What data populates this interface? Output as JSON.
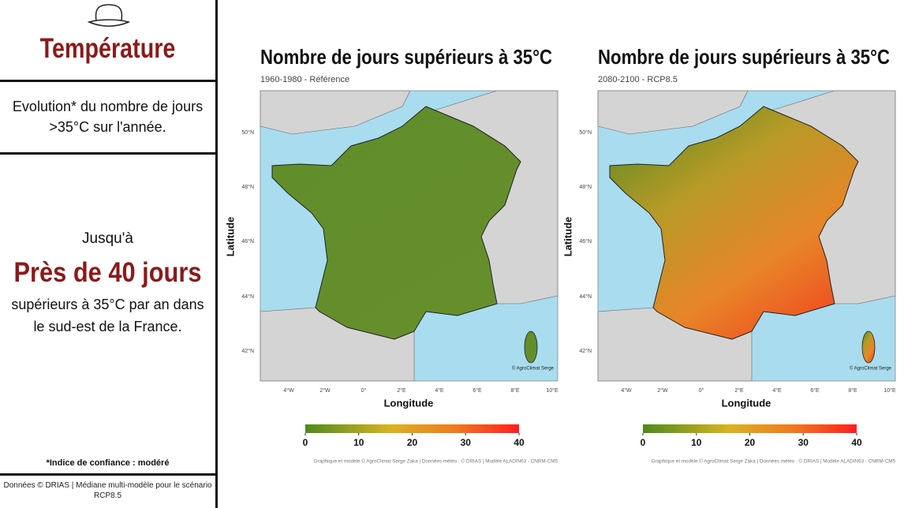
{
  "sidebar": {
    "title": "Température",
    "intro": [
      "Evolution* du nombre de jours",
      ">35°C sur l'année."
    ],
    "lead": "Jusqu'à",
    "highlight": "Près de 40 jours",
    "detail": [
      "supérieurs à 35°C par an dans",
      "le sud-est de la France."
    ],
    "note": "*Indice de confiance : modéré",
    "source": [
      "Données © DRIAS | Médiane multi-modèle pour le scénario",
      "RCP8.5"
    ]
  },
  "maps": [
    {
      "title": "Nombre de jours supérieurs à 35°C",
      "subtitle": "1960-1980 - Référence",
      "x_label": "Longitude",
      "y_label": "Latitude",
      "lat_ticks": [
        "50°N",
        "48°N",
        "46°N",
        "44°N",
        "42°N"
      ],
      "lon_ticks": [
        "4°W",
        "2°W",
        "0°",
        "2°E",
        "4°E",
        "6°E",
        "8°E",
        "10°E"
      ],
      "colorbar": {
        "range": [
          0,
          40
        ],
        "ticks": [
          0,
          10,
          20,
          30,
          40
        ]
      },
      "watermark": "© AgroClimat Serge",
      "credit": "Graphique et modèle © AgroClimat Serge Zaka | Données météo : © DRIAS | Modèle ALADIN63 - CNRM-CM5"
    },
    {
      "title": "Nombre de jours supérieurs à 35°C",
      "subtitle": "2080-2100 - RCP8.5",
      "x_label": "Longitude",
      "y_label": "Latitude",
      "lat_ticks": [
        "50°N",
        "48°N",
        "46°N",
        "44°N",
        "42°N"
      ],
      "lon_ticks": [
        "4°W",
        "2°W",
        "0°",
        "2°E",
        "4°E",
        "6°E",
        "8°E",
        "10°E"
      ],
      "colorbar": {
        "range": [
          0,
          40
        ],
        "ticks": [
          0,
          10,
          20,
          30,
          40
        ]
      },
      "watermark": "© AgroClimat Serge",
      "credit": "Graphique et modèle © AgroClimat Serge Zaka | Données météo : © DRIAS | Modèle ALADIN63 - CNRM-CM5"
    }
  ]
}
